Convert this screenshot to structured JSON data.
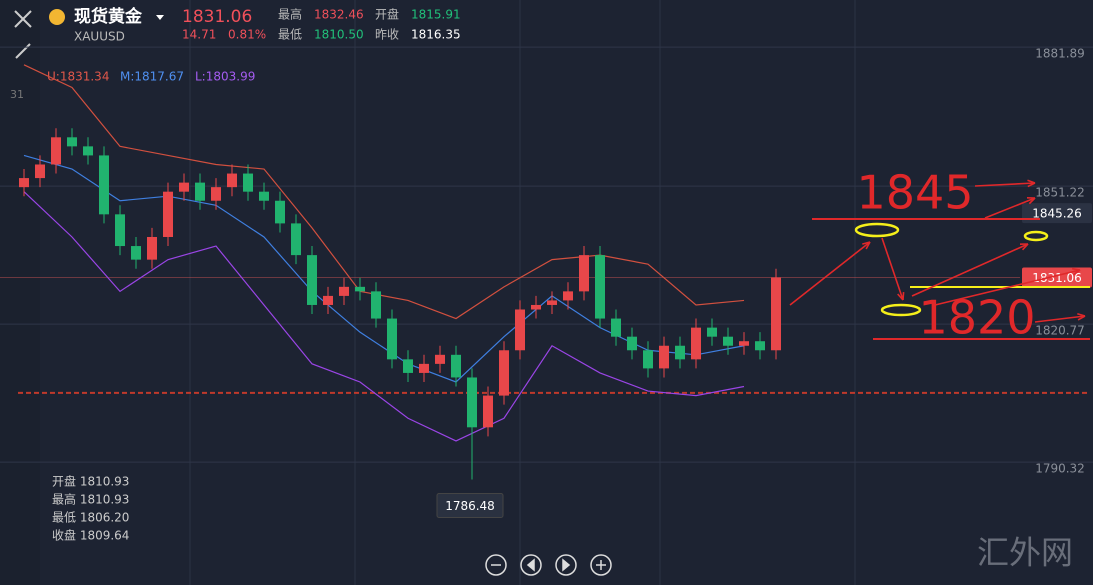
{
  "header": {
    "name": "现货黄金",
    "symbol": "XAUUSD",
    "price": "1831.06",
    "change": "14.71",
    "change_pct": "0.81%",
    "high_label": "最高",
    "high": "1832.46",
    "open_label": "开盘",
    "open": "1815.91",
    "low_label": "最低",
    "low": "1810.50",
    "prev_label": "昨收",
    "prev": "1816.35"
  },
  "legend": {
    "upper": "U:1831.34",
    "middle": "M:1817.67",
    "lower": "L:1803.99",
    "period": "31"
  },
  "info_box": [
    "开盘 1810.93",
    "最高 1810.93",
    "最低 1806.20",
    "收盘 1809.64"
  ],
  "watermark": "汇外网",
  "chart_data": {
    "type": "candlestick",
    "up_color": "#e8474a",
    "down_color": "#21b36f",
    "ylim": [
      1763.2,
      1892.3
    ],
    "yticks": [
      1881.89,
      1851.22,
      1820.77,
      1790.32
    ],
    "open": [
      1851,
      1853,
      1856,
      1862,
      1860,
      1858,
      1845,
      1838,
      1835,
      1840,
      1850,
      1852,
      1848,
      1851,
      1854,
      1850,
      1848,
      1843,
      1836,
      1825,
      1827,
      1829,
      1828,
      1822,
      1813,
      1810,
      1812,
      1814,
      1809,
      1798,
      1805,
      1815,
      1824,
      1825,
      1826,
      1828,
      1836,
      1822,
      1818,
      1815,
      1811,
      1816,
      1813,
      1820,
      1818,
      1816,
      1817,
      1815
    ],
    "close": [
      1853,
      1856,
      1862,
      1860,
      1858,
      1845,
      1838,
      1835,
      1840,
      1850,
      1852,
      1848,
      1851,
      1854,
      1850,
      1848,
      1843,
      1836,
      1825,
      1827,
      1829,
      1828,
      1822,
      1813,
      1810,
      1812,
      1814,
      1809,
      1798,
      1805,
      1815,
      1824,
      1825,
      1826,
      1828,
      1836,
      1822,
      1818,
      1815,
      1811,
      1816,
      1813,
      1820,
      1818,
      1816,
      1817,
      1815,
      1831.06
    ],
    "high": [
      1855,
      1858,
      1864,
      1864,
      1862,
      1860,
      1847,
      1840,
      1842,
      1852,
      1854,
      1854,
      1853,
      1856,
      1856,
      1852,
      1850,
      1845,
      1838,
      1829,
      1831,
      1831,
      1830,
      1824,
      1815,
      1814,
      1816,
      1816,
      1811,
      1807,
      1817,
      1826,
      1827,
      1828,
      1830,
      1838,
      1838,
      1824,
      1820,
      1817,
      1818,
      1818,
      1822,
      1822,
      1820,
      1819,
      1819,
      1833
    ],
    "low": [
      1849,
      1851,
      1854,
      1858,
      1856,
      1843,
      1836,
      1833,
      1833,
      1838,
      1848,
      1846,
      1846,
      1849,
      1848,
      1846,
      1841,
      1834,
      1823,
      1823,
      1825,
      1826,
      1820,
      1811,
      1808,
      1808,
      1810,
      1807,
      1786.48,
      1796,
      1803,
      1813,
      1822,
      1823,
      1824,
      1826,
      1820,
      1816,
      1813,
      1809,
      1809,
      1811,
      1811,
      1816,
      1814,
      1814,
      1813,
      1813
    ],
    "bands": [
      {
        "name": "upper",
        "color": "#d2503f",
        "values": [
          1878,
          1873,
          1860,
          1858,
          1856,
          1855,
          1842,
          1828,
          1826,
          1822,
          1829,
          1835,
          1836,
          1834,
          1825,
          1826
        ]
      },
      {
        "name": "middle",
        "color": "#3f7fe0",
        "values": [
          1858,
          1855,
          1848,
          1849,
          1847,
          1840,
          1828,
          1819,
          1812,
          1808,
          1818,
          1827,
          1820,
          1815,
          1814,
          1816
        ]
      },
      {
        "name": "lower",
        "color": "#9a45e6",
        "values": [
          1850,
          1840,
          1828,
          1835,
          1838,
          1825,
          1812,
          1808,
          1800,
          1795,
          1800,
          1816,
          1810,
          1806,
          1805,
          1807
        ]
      }
    ],
    "low_label": 1786.48,
    "support_line": 1805.6,
    "price_tags": [
      1845.26,
      1831.06
    ],
    "annotations": [
      "1845",
      "1820"
    ]
  }
}
